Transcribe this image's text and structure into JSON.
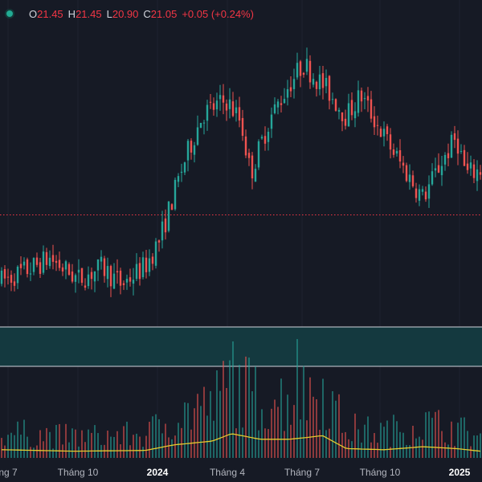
{
  "legend": {
    "open_key": "O",
    "open_value": "21.45",
    "high_key": "H",
    "high_value": "21.45",
    "low_key": "L",
    "low_value": "20.90",
    "close_key": "C",
    "close_value": "21.05",
    "change": "+0.05 (+0.24%)"
  },
  "x_axis": {
    "ticks": [
      {
        "label": "ng 7",
        "year": false
      },
      {
        "label": "Tháng 10",
        "year": false
      },
      {
        "label": "2024",
        "year": true
      },
      {
        "label": "Tháng 4",
        "year": false
      },
      {
        "label": "Tháng 7",
        "year": false
      },
      {
        "label": "Tháng 10",
        "year": false
      },
      {
        "label": "2025",
        "year": true
      }
    ]
  },
  "colors": {
    "background": "#161a25",
    "up": "#26a69a",
    "down": "#ef5350",
    "volume_ma": "#e4cb2d",
    "band_fill": "#14393f",
    "band_border": "#d1d4dc",
    "price_line": "#f23645",
    "status": "#22ab94"
  },
  "chart_data": {
    "type": "candlestick",
    "price_anchors": [
      {
        "t": 0,
        "p": 18.55
      },
      {
        "t": 0.06,
        "p": 19.0
      },
      {
        "t": 0.1,
        "p": 19.4
      },
      {
        "t": 0.16,
        "p": 18.6
      },
      {
        "t": 0.21,
        "p": 19.05
      },
      {
        "t": 0.25,
        "p": 18.4
      },
      {
        "t": 0.3,
        "p": 19.1
      },
      {
        "t": 0.33,
        "p": 20.1
      },
      {
        "t": 0.38,
        "p": 23.0
      },
      {
        "t": 0.42,
        "p": 24.9
      },
      {
        "t": 0.47,
        "p": 25.4
      },
      {
        "t": 0.5,
        "p": 24.6
      },
      {
        "t": 0.52,
        "p": 22.6
      },
      {
        "t": 0.56,
        "p": 24.7
      },
      {
        "t": 0.6,
        "p": 26.0
      },
      {
        "t": 0.63,
        "p": 26.8
      },
      {
        "t": 0.68,
        "p": 25.8
      },
      {
        "t": 0.72,
        "p": 24.8
      },
      {
        "t": 0.75,
        "p": 25.6
      },
      {
        "t": 0.8,
        "p": 24.0
      },
      {
        "t": 0.84,
        "p": 22.8
      },
      {
        "t": 0.88,
        "p": 21.7
      },
      {
        "t": 0.92,
        "p": 23.1
      },
      {
        "t": 0.95,
        "p": 24.0
      },
      {
        "t": 0.97,
        "p": 22.6
      },
      {
        "t": 1.0,
        "p": 22.75
      }
    ],
    "price_min": 17.0,
    "price_max": 28.0,
    "last_price": 21.05,
    "volume_anchors": [
      {
        "t": 0,
        "v": 0.22
      },
      {
        "t": 0.15,
        "v": 0.18
      },
      {
        "t": 0.3,
        "v": 0.2
      },
      {
        "t": 0.36,
        "v": 0.35
      },
      {
        "t": 0.44,
        "v": 0.45
      },
      {
        "t": 0.48,
        "v": 0.65
      },
      {
        "t": 0.54,
        "v": 0.5
      },
      {
        "t": 0.6,
        "v": 0.5
      },
      {
        "t": 0.64,
        "v": 0.55
      },
      {
        "t": 0.67,
        "v": 0.6
      },
      {
        "t": 0.72,
        "v": 0.25
      },
      {
        "t": 0.8,
        "v": 0.22
      },
      {
        "t": 0.88,
        "v": 0.3
      },
      {
        "t": 0.95,
        "v": 0.25
      },
      {
        "t": 1.0,
        "v": 0.18
      }
    ],
    "volume_spikes": [
      {
        "t": 0.48,
        "v": 1.0
      },
      {
        "t": 0.62,
        "v": 1.02
      },
      {
        "t": 0.47,
        "v": 0.6
      },
      {
        "t": 0.41,
        "v": 0.55
      },
      {
        "t": 0.57,
        "v": 0.5
      }
    ]
  }
}
